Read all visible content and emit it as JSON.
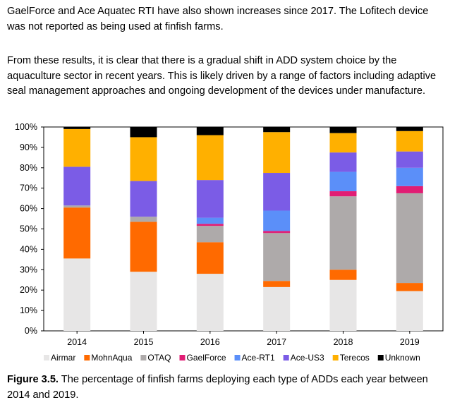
{
  "text": {
    "paragraph1": "GaelForce and Ace Aquatec RTI have also shown increases since 2017. The Lofitech device was not reported as being used at finfish farms.",
    "paragraph2": "From these results, it is clear that there is a gradual shift in ADD system choice by the aquaculture sector in recent years. This is likely driven by a range of factors including adaptive seal management approaches and ongoing development of the devices under manufacture.",
    "caption_label": "Figure 3.5.",
    "caption_text": " The percentage of finfish farms deploying each type of ADDs each year between 2014 and 2019."
  },
  "chart_data": {
    "type": "bar",
    "stacked": true,
    "title": "",
    "xlabel": "",
    "ylabel": "",
    "ylim": [
      0,
      100
    ],
    "yticks": [
      "0%",
      "10%",
      "20%",
      "30%",
      "40%",
      "50%",
      "60%",
      "70%",
      "80%",
      "90%",
      "100%"
    ],
    "categories": [
      "2014",
      "2015",
      "2016",
      "2017",
      "2018",
      "2019"
    ],
    "legend_position": "bottom",
    "series": [
      {
        "name": "Airmar",
        "color": "#e7e6e6",
        "values": [
          35.5,
          29,
          28,
          21.5,
          25,
          19.5
        ]
      },
      {
        "name": "MohnAqua",
        "color": "#ff6a00",
        "values": [
          25,
          24.5,
          15.5,
          3,
          5,
          4
        ]
      },
      {
        "name": "OTAQ",
        "color": "#aeaaaa",
        "values": [
          1,
          2.5,
          8,
          23.5,
          36,
          44
        ]
      },
      {
        "name": "GaelForce",
        "color": "#e11d74",
        "values": [
          0,
          0,
          1,
          1,
          2.5,
          3.5
        ]
      },
      {
        "name": "Ace-RT1",
        "color": "#5b8ff9",
        "values": [
          0,
          0,
          3,
          10,
          9.5,
          9
        ]
      },
      {
        "name": "Ace-US3",
        "color": "#7b5ce6",
        "values": [
          19,
          17.5,
          18.5,
          18.5,
          9.5,
          8
        ]
      },
      {
        "name": "Terecos",
        "color": "#ffb000",
        "values": [
          18.5,
          21.5,
          22,
          20,
          9.5,
          10
        ]
      },
      {
        "name": "Unknown",
        "color": "#000000",
        "values": [
          1,
          5,
          4,
          2.5,
          3,
          2
        ]
      }
    ]
  }
}
